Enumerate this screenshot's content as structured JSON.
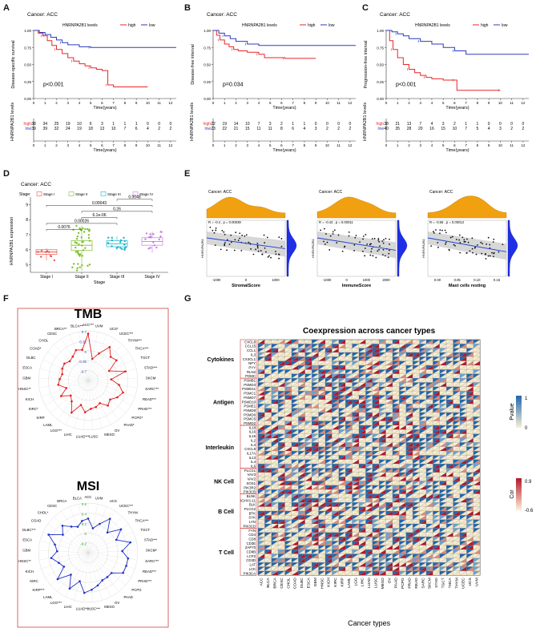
{
  "figure": {
    "panel_letters": [
      "A",
      "B",
      "C",
      "D",
      "E",
      "F",
      "G"
    ]
  },
  "colors": {
    "high": "#e8272a",
    "low": "#2b3bbd",
    "grid": "#d9d9d9",
    "tmb_line": "#e02020",
    "msi_line": "#2030c8",
    "orange": "#f1a10f",
    "blue_density": "#1f2fe6",
    "stage1": "#e8584e",
    "stage2": "#7fbf2a",
    "stage3": "#1eb4c8",
    "stage4": "#c77ce0",
    "heat_hi": "#2166ac",
    "heat_lo": "#f7f1d6",
    "cor_hi": "#b2182b"
  },
  "chart_data": [
    {
      "panel": "A",
      "type": "line",
      "title": "Cancer: ACC",
      "legend_title": "HNRNPA2B1 levels",
      "legend": [
        "high",
        "low"
      ],
      "ylabel": "Disease-specific survival",
      "xlabel": "Time(years)",
      "xlim": [
        0,
        12.5
      ],
      "ylim": [
        0,
        1
      ],
      "yticks": [
        "0.00",
        "0.25",
        "0.50",
        "0.75",
        "1.00"
      ],
      "xticks": [
        "0",
        "1",
        "2",
        "3",
        "4",
        "5",
        "6",
        "7",
        "8",
        "9",
        "10",
        "11",
        "12"
      ],
      "pvalue": "p<0.001",
      "series": [
        {
          "name": "high",
          "x": [
            0,
            0.4,
            0.8,
            1.2,
            1.6,
            2,
            2.5,
            3,
            3.5,
            4,
            4.5,
            5,
            5.5,
            6,
            6.5,
            7,
            10
          ],
          "y": [
            1,
            0.96,
            0.92,
            0.85,
            0.78,
            0.72,
            0.66,
            0.6,
            0.55,
            0.51,
            0.48,
            0.45,
            0.43,
            0.41,
            0.2,
            0.17,
            0.17
          ]
        },
        {
          "name": "low",
          "x": [
            0,
            0.5,
            1,
            1.5,
            2,
            2.5,
            3,
            4,
            5,
            12.5
          ],
          "y": [
            1,
            0.97,
            0.94,
            0.9,
            0.86,
            0.82,
            0.79,
            0.76,
            0.75,
            0.75
          ]
        }
      ],
      "risk_ylabel": "HNRNPA2B1 levels",
      "risk_table": {
        "high": [
          "38",
          "34",
          "25",
          "19",
          "10",
          "6",
          "3",
          "1",
          "1",
          "1",
          "0",
          "0",
          "0"
        ],
        "low": [
          "39",
          "39",
          "32",
          "24",
          "19",
          "18",
          "13",
          "10",
          "7",
          "6",
          "4",
          "2",
          "2"
        ]
      }
    },
    {
      "panel": "B",
      "type": "line",
      "title": "Cancer: ACC",
      "legend_title": "HNRNPA2B1 levels",
      "legend": [
        "high",
        "low"
      ],
      "ylabel": "Disease-free interval",
      "xlabel": "Time(years)",
      "xlim": [
        0,
        12.5
      ],
      "ylim": [
        0,
        1
      ],
      "yticks": [
        "0.00",
        "0.25",
        "0.50",
        "0.75",
        "1.00"
      ],
      "xticks": [
        "0",
        "1",
        "2",
        "3",
        "4",
        "5",
        "6",
        "7",
        "8",
        "9",
        "10",
        "11",
        "12"
      ],
      "pvalue": "p=0.034",
      "series": [
        {
          "name": "high",
          "x": [
            0,
            0.3,
            0.6,
            1,
            1.4,
            1.8,
            2.2,
            3,
            4,
            4.5,
            6,
            6.3,
            9
          ],
          "y": [
            1,
            0.93,
            0.86,
            0.8,
            0.76,
            0.72,
            0.7,
            0.68,
            0.65,
            0.6,
            0.6,
            0.59,
            0.59
          ]
        },
        {
          "name": "low",
          "x": [
            0,
            0.5,
            1,
            1.5,
            2,
            3,
            4,
            12.5
          ],
          "y": [
            1,
            0.96,
            0.92,
            0.88,
            0.84,
            0.8,
            0.78,
            0.78
          ]
        }
      ],
      "risk_ylabel": "HNRNPA2B1 levels",
      "risk_table": {
        "high": [
          "22",
          "19",
          "14",
          "10",
          "7",
          "3",
          "2",
          "1",
          "1",
          "0",
          "0",
          "0",
          "0"
        ],
        "low": [
          "23",
          "22",
          "21",
          "15",
          "11",
          "11",
          "8",
          "6",
          "4",
          "3",
          "2",
          "2",
          "2"
        ]
      }
    },
    {
      "panel": "C",
      "type": "line",
      "title": "Cancer: ACC",
      "legend_title": "HNRNPA2B1 levels",
      "legend": [
        "high",
        "low"
      ],
      "ylabel": "Progression-free interval",
      "xlabel": "Time(years)",
      "xlim": [
        0,
        12.5
      ],
      "ylim": [
        0,
        1
      ],
      "yticks": [
        "0.00",
        "0.25",
        "0.50",
        "0.75",
        "1.00"
      ],
      "xticks": [
        "0",
        "1",
        "2",
        "3",
        "4",
        "5",
        "6",
        "7",
        "8",
        "9",
        "10",
        "11",
        "12"
      ],
      "pvalue": "p<0.001",
      "series": [
        {
          "name": "high",
          "x": [
            0,
            0.3,
            0.6,
            1,
            1.5,
            2,
            2.5,
            3,
            3.5,
            4,
            5,
            6,
            6.2,
            6.6,
            10
          ],
          "y": [
            1,
            0.85,
            0.72,
            0.6,
            0.5,
            0.43,
            0.38,
            0.34,
            0.31,
            0.29,
            0.27,
            0.27,
            0.12,
            0.12,
            0.12
          ]
        },
        {
          "name": "low",
          "x": [
            0,
            0.5,
            1,
            1.5,
            2,
            3,
            4,
            5,
            6,
            7,
            12.5
          ],
          "y": [
            1,
            0.98,
            0.95,
            0.92,
            0.88,
            0.84,
            0.8,
            0.75,
            0.7,
            0.65,
            0.65
          ]
        }
      ],
      "risk_ylabel": "HNRNPA2B1 levels",
      "risk_table": {
        "high": [
          "38",
          "21",
          "13",
          "7",
          "4",
          "3",
          "2",
          "1",
          "1",
          "0",
          "0",
          "0",
          "0"
        ],
        "low": [
          "40",
          "35",
          "28",
          "20",
          "16",
          "15",
          "10",
          "7",
          "5",
          "4",
          "3",
          "2",
          "2"
        ]
      }
    },
    {
      "panel": "D",
      "type": "box",
      "title": "Cancer: ACC",
      "legend_title": "Stage",
      "categories": [
        "Stage I",
        "Stage II",
        "Stage III",
        "Stage IV"
      ],
      "xlabel": "Stage",
      "ylabel": "HNRNPA2B1 expression",
      "ylim": [
        4.5,
        9.5
      ],
      "yticks": [
        "5",
        "6",
        "7",
        "8",
        "9"
      ],
      "boxes": [
        {
          "q1": 5.7,
          "median": 5.85,
          "q3": 6.0,
          "whislo": 5.3,
          "whishi": 6.1
        },
        {
          "q1": 5.95,
          "median": 6.3,
          "q3": 6.6,
          "whislo": 4.6,
          "whishi": 7.6
        },
        {
          "q1": 6.2,
          "median": 6.4,
          "q3": 6.6,
          "whislo": 6.0,
          "whishi": 6.9
        },
        {
          "q1": 6.3,
          "median": 6.55,
          "q3": 6.8,
          "whislo": 5.8,
          "whishi": 7.2
        }
      ],
      "comparisons": [
        {
          "from": 0,
          "to": 1,
          "label": "0.0076"
        },
        {
          "from": 0,
          "to": 2,
          "label": "0.00026"
        },
        {
          "from": 1,
          "to": 2,
          "label": "6.1e-06"
        },
        {
          "from": 1,
          "to": 3,
          "label": "0.26"
        },
        {
          "from": 0,
          "to": 3,
          "label": "0.00043"
        },
        {
          "from": 2,
          "to": 3,
          "label": "0.0048"
        }
      ]
    },
    {
      "panel": "E",
      "type": "scatter",
      "plots": [
        {
          "title": "Cancer: ACC",
          "xlabel": "StromalScore",
          "ylabel": "HNRNPA2B1",
          "stat": "R = -0.4 , p = 0.00039",
          "xticks": [
            "-1000",
            "0",
            "1000"
          ]
        },
        {
          "title": "Cancer: ACC",
          "xlabel": "ImmuneScore",
          "ylabel": "HNRNPA2B1",
          "stat": "R = -0.43 , p = 0.00011",
          "xticks": [
            "-1000",
            "0",
            "1000",
            "2000"
          ]
        },
        {
          "title": "Cancer: ACC",
          "xlabel": "Mast cells resting",
          "ylabel": "HNRNPA2B1",
          "stat": "R = -0.56 , p = 0.00012",
          "xticks": [
            "0.00",
            "0.05",
            "0.10",
            "0.15"
          ]
        }
      ]
    },
    {
      "panel": "F",
      "type": "radar",
      "charts": [
        {
          "title": "TMB",
          "rings": [
            "0.7",
            "0.35",
            "0",
            "-0.35",
            "-0.7"
          ],
          "categories": [
            "ACC***",
            "UVM",
            "UCS*",
            "UCEC***",
            "THYM***",
            "THCA***",
            "TGCT",
            "STAD***",
            "SKCM",
            "SARC***",
            "READ***",
            "PRAD***",
            "PCPG*",
            "PAAD*",
            "OV",
            "MESO",
            "LUSC",
            "LUAD***",
            "LIHC",
            "LGG***",
            "LAML",
            "KIRP",
            "KIRC*",
            "KICH",
            "HNSC**",
            "GBM",
            "ESCA",
            "DLBC",
            "COAD*",
            "CHOL",
            "CESC",
            "BRCA**",
            "BLCA***"
          ],
          "values": [
            0.62,
            -0.08,
            0.12,
            0.42,
            0.22,
            0.28,
            -0.05,
            0.38,
            -0.05,
            0.18,
            0.34,
            0.25,
            0.12,
            0.2,
            0.02,
            0.08,
            0.1,
            0.2,
            0.02,
            0.32,
            0.05,
            -0.05,
            0.18,
            -0.05,
            0.15,
            0.1,
            0.05,
            0.1,
            0.12,
            0.05,
            0.1,
            0.22,
            0.18
          ]
        },
        {
          "title": "MSI",
          "rings": [
            "0.6",
            "0.4",
            "0.2",
            "0",
            "-0.2"
          ],
          "categories": [
            "ACC",
            "UVM",
            "UCS",
            "UCEC***",
            "THYM",
            "THCA***",
            "TGCT",
            "STAD***",
            "SKCM*",
            "SARC***",
            "READ***",
            "PRAD***",
            "PCPG",
            "PAAD",
            "OV",
            "MESO",
            "LUSC***",
            "LUAD***",
            "LIHC",
            "LGG***",
            "LAML",
            "KIRP***",
            "KIRC",
            "KICH",
            "HNSC**",
            "GBM",
            "ESCA",
            "DLBC***",
            "COAD",
            "CHOL*",
            "CESC",
            "BRCA",
            "BLCA"
          ],
          "values": [
            0.35,
            0.2,
            0.3,
            0.45,
            0.25,
            0.45,
            0.3,
            0.5,
            0.35,
            0.45,
            0.45,
            0.45,
            0.3,
            0.3,
            0.3,
            0.35,
            0.4,
            0.45,
            0.28,
            0.45,
            0.25,
            0.45,
            0.25,
            0.3,
            0.4,
            0.3,
            0.35,
            0.5,
            0.3,
            0.4,
            0.3,
            0.25,
            0.32
          ]
        }
      ]
    },
    {
      "panel": "G",
      "type": "heatmap",
      "title": "Coexpression across cancer types",
      "xlabel": "Cancer types",
      "columns": [
        "ACC",
        "BLCA",
        "BRCA",
        "CESC",
        "CHOL",
        "COAD",
        "DLBC",
        "ESCA",
        "GBM",
        "HNSC",
        "KICH",
        "KIRC",
        "KIRP",
        "LAML",
        "LGG",
        "LIHC",
        "LUAD",
        "LUSC",
        "MESO",
        "OV",
        "PAAD",
        "PCPG",
        "PRAD",
        "READ",
        "SARC",
        "SKCM",
        "STAD",
        "TGCT",
        "THCA",
        "THYM",
        "UCEC",
        "UCS",
        "UVM"
      ],
      "groups": [
        {
          "name": "Cytokines",
          "genes": [
            "CXCL8",
            "CCL15",
            "CCL1",
            "IL3",
            "CX3CL1",
            "NPY",
            "PYY",
            "RLN2",
            "POMC"
          ]
        },
        {
          "name": "Antigen",
          "genes": [
            "PSMB1",
            "PSMD3",
            "PSMD11",
            "PSMC1",
            "PSMD7",
            "PSMD10",
            "PSME1",
            "PSMD8",
            "PSMD6",
            "PSMC5",
            "PSMD2"
          ]
        },
        {
          "name": "Interleukin",
          "genes": [
            "IL18",
            "IL16",
            "IL15",
            "IL2",
            "IL3",
            "CXCL8",
            "IL17A",
            "IL13",
            "IL4",
            "IL6"
          ]
        },
        {
          "name": "NK Cell",
          "genes": [
            "PLCG1",
            "VAV3",
            "VAV2",
            "SOS1",
            "PIK3R2",
            "PIK3CB"
          ]
        },
        {
          "name": "B Cell",
          "genes": [
            "BLNK",
            "IGHV1-11",
            "BLK",
            "PLCG2",
            "BTK",
            "SYK",
            "LYN",
            "PIK3CD"
          ]
        },
        {
          "name": "T Cell",
          "genes": [
            "FYN",
            "CD4",
            "CD8",
            "CD3E",
            "ZAP70",
            "CD8B",
            "LCP2",
            "CD3D",
            "LAT",
            "LCK",
            "PIK3CA"
          ]
        }
      ],
      "legends": [
        {
          "title": "Pvalue",
          "ticks": [
            "1",
            "0"
          ]
        },
        {
          "title": "Cor",
          "ticks": [
            "0.9",
            "-0.6"
          ]
        }
      ]
    }
  ]
}
